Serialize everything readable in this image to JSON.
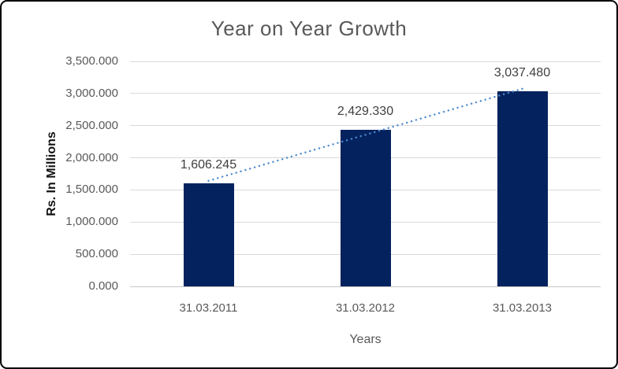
{
  "window": {
    "background": "#ffffff",
    "border_color": "#000000"
  },
  "chart_data": {
    "type": "bar",
    "title": "Year on Year Growth",
    "xlabel": "Years",
    "ylabel": "Rs. In Millions",
    "categories": [
      "31.03.2011",
      "31.03.2012",
      "31.03.2013"
    ],
    "values": [
      1606.245,
      2429.33,
      3037.48
    ],
    "data_labels": [
      "1,606.245",
      "2,429.330",
      "3,037.480"
    ],
    "ylim": [
      0,
      3500
    ],
    "y_ticks": [
      {
        "value": 0,
        "label": "0.000"
      },
      {
        "value": 500,
        "label": "500.000"
      },
      {
        "value": 1000,
        "label": "1,000.000"
      },
      {
        "value": 1500,
        "label": "1,500.000"
      },
      {
        "value": 2000,
        "label": "2,000.000"
      },
      {
        "value": 2500,
        "label": "2,500.000"
      },
      {
        "value": 3000,
        "label": "3,000.000"
      },
      {
        "value": 3500,
        "label": "3,500.000"
      }
    ],
    "grid": "horizontal",
    "legend": "none",
    "trendline": {
      "type": "linear",
      "style": "dotted",
      "color": "#4E8BD0"
    },
    "colors": {
      "bar": "#03225E",
      "gridline": "#D9D9D9",
      "axis_line": "#C6C6C6",
      "title_text": "#595959",
      "tick_text": "#595959",
      "data_label_text": "#3F3F3F",
      "axis_title_text": "#111111"
    }
  }
}
